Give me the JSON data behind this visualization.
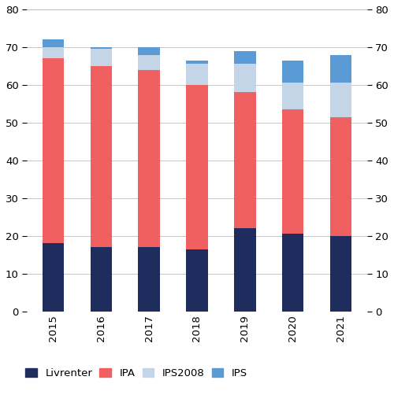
{
  "years": [
    "2015",
    "2016",
    "2017",
    "2018",
    "2019",
    "2020",
    "2021"
  ],
  "livrenter": [
    18.0,
    17.0,
    17.0,
    16.5,
    22.0,
    20.5,
    20.0
  ],
  "ipa": [
    49.0,
    48.0,
    47.0,
    43.5,
    36.0,
    33.0,
    31.5
  ],
  "ips2008": [
    3.0,
    4.5,
    4.0,
    5.5,
    7.5,
    7.0,
    9.0
  ],
  "ips": [
    2.0,
    0.5,
    2.0,
    1.0,
    3.5,
    6.0,
    7.5
  ],
  "color_livrenter": "#1e2d5e",
  "color_ipa": "#f06060",
  "color_ips2008": "#c5d5e8",
  "color_ips": "#5b9bd5",
  "ylim": [
    0,
    80
  ],
  "yticks": [
    0,
    10,
    20,
    30,
    40,
    50,
    60,
    70,
    80
  ],
  "legend_labels": [
    "Livrenter",
    "IPA",
    "IPS2008",
    "IPS"
  ],
  "bar_width": 0.45
}
